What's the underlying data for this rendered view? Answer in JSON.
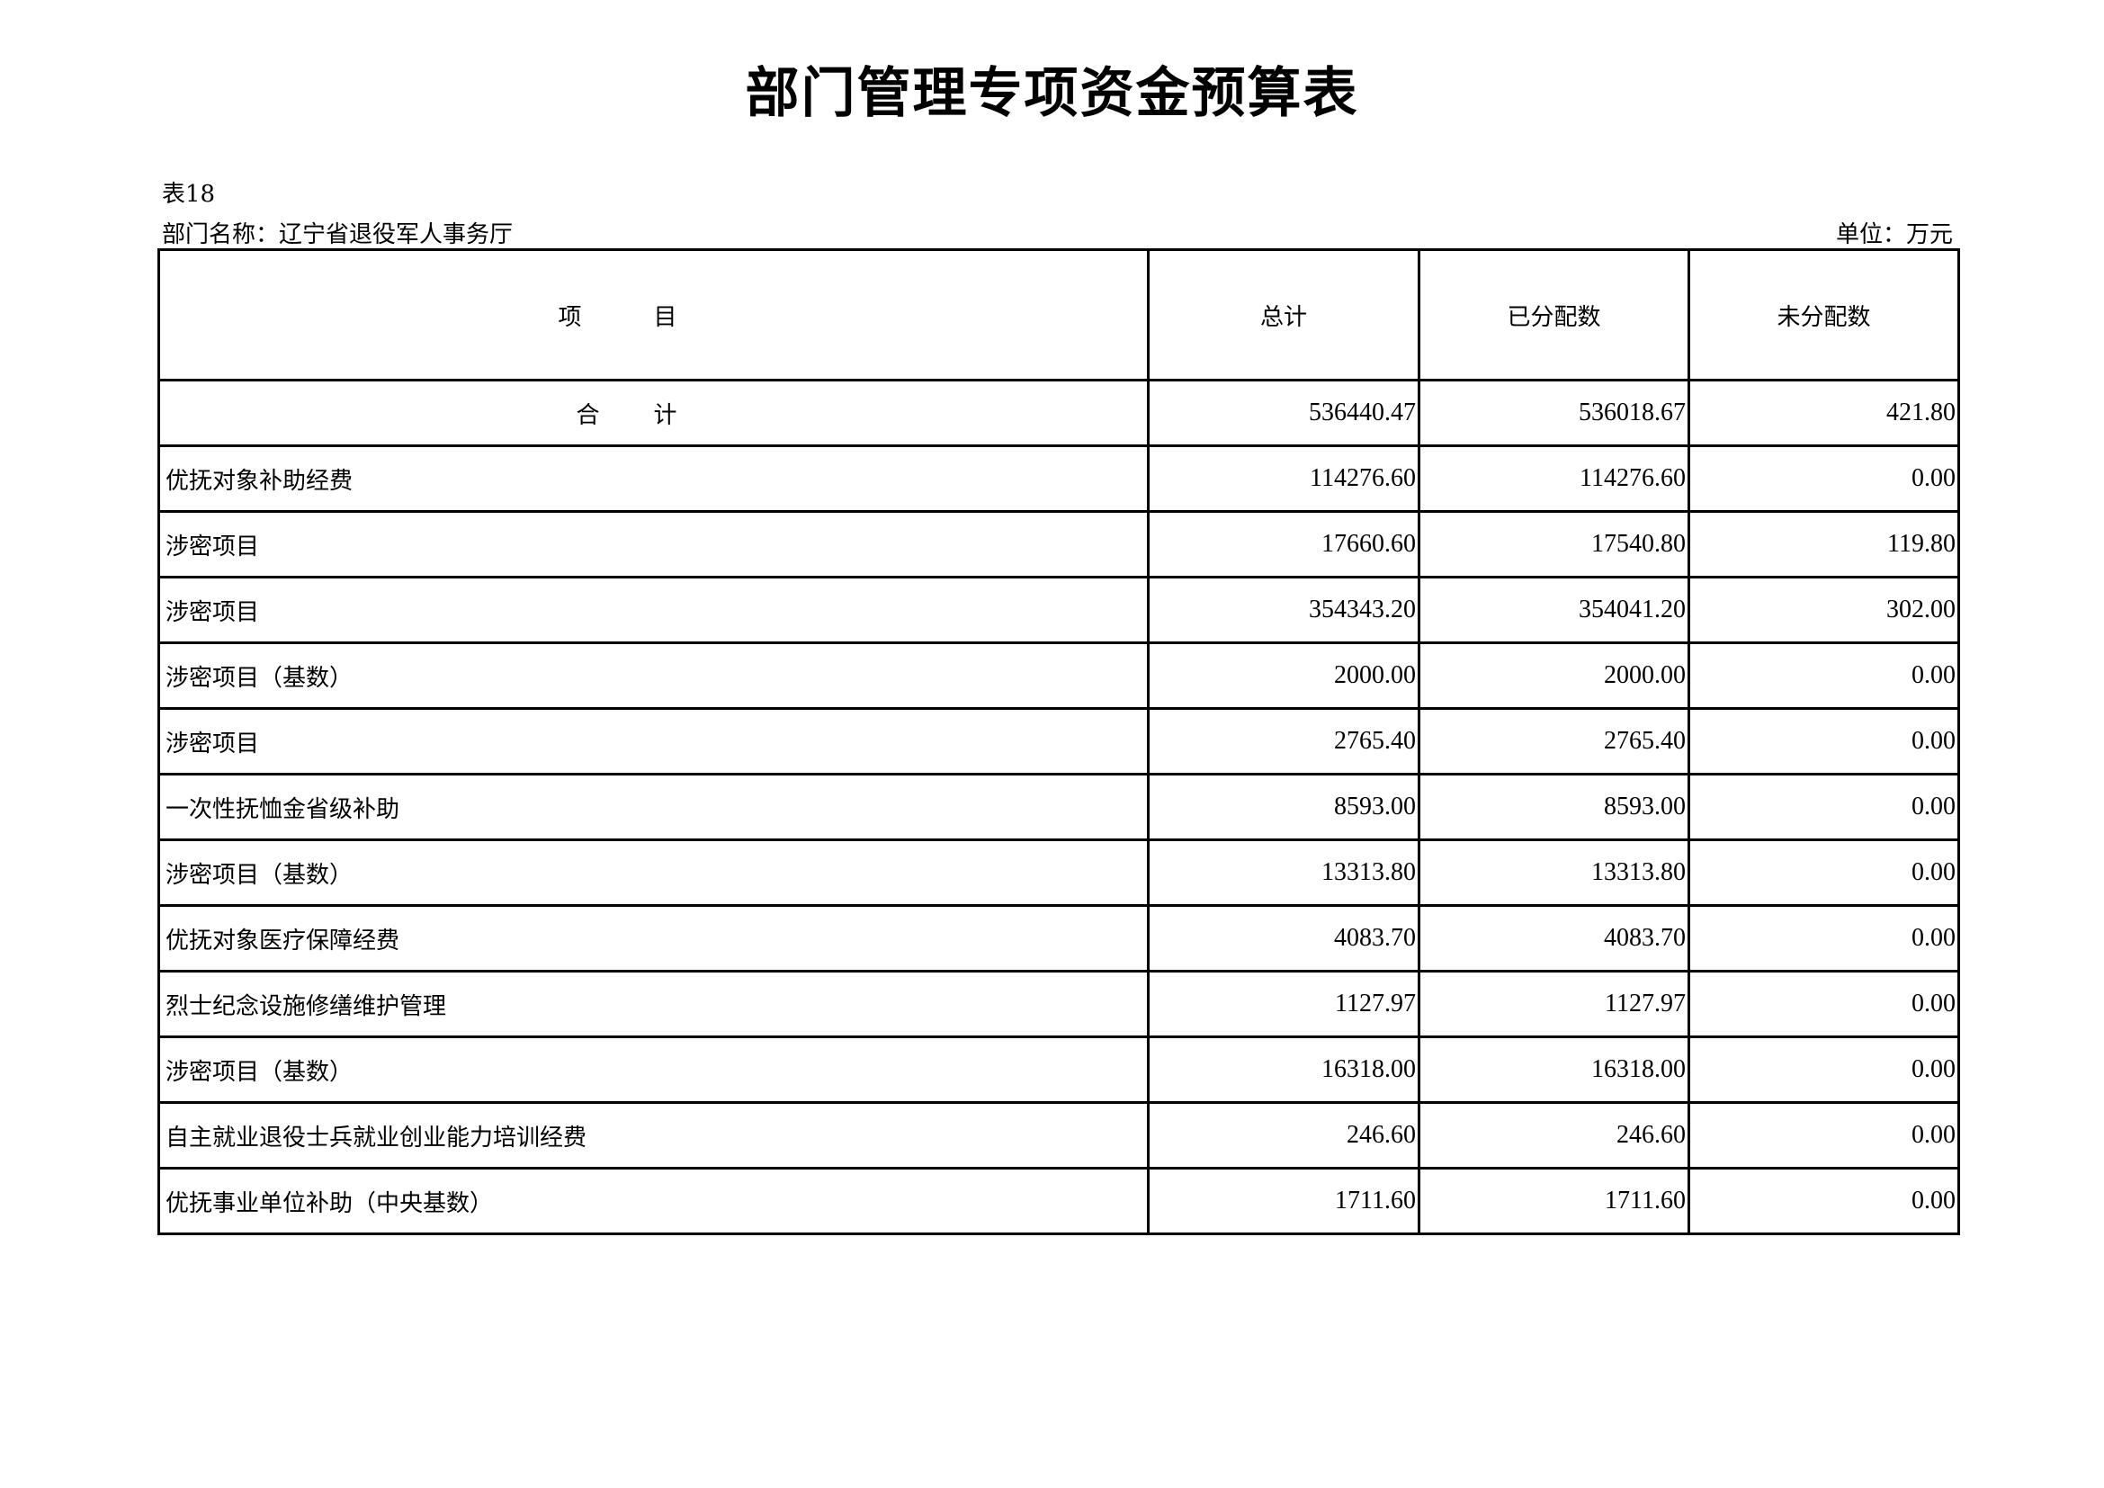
{
  "title": "部门管理专项资金预算表",
  "table_no": "表18",
  "department": "部门名称：辽宁省退役军人事务厅",
  "unit": "单位：万元",
  "headers": [
    "项目",
    "总计",
    "已分配数",
    "未分配数"
  ],
  "total": {
    "label": "合计",
    "total": "536440.47",
    "allocated": "536018.67",
    "unallocated": "421.80"
  },
  "rows": [
    {
      "name": "优抚对象补助经费",
      "total": "114276.60",
      "allocated": "114276.60",
      "unallocated": "0.00"
    },
    {
      "name": "涉密项目",
      "total": "17660.60",
      "allocated": "17540.80",
      "unallocated": "119.80"
    },
    {
      "name": "涉密项目",
      "total": "354343.20",
      "allocated": "354041.20",
      "unallocated": "302.00"
    },
    {
      "name": "涉密项目（基数）",
      "total": "2000.00",
      "allocated": "2000.00",
      "unallocated": "0.00"
    },
    {
      "name": "涉密项目",
      "total": "2765.40",
      "allocated": "2765.40",
      "unallocated": "0.00"
    },
    {
      "name": "一次性抚恤金省级补助",
      "total": "8593.00",
      "allocated": "8593.00",
      "unallocated": "0.00"
    },
    {
      "name": "涉密项目（基数）",
      "total": "13313.80",
      "allocated": "13313.80",
      "unallocated": "0.00"
    },
    {
      "name": "优抚对象医疗保障经费",
      "total": "4083.70",
      "allocated": "4083.70",
      "unallocated": "0.00"
    },
    {
      "name": "烈士纪念设施修缮维护管理",
      "total": "1127.97",
      "allocated": "1127.97",
      "unallocated": "0.00"
    },
    {
      "name": "涉密项目（基数）",
      "total": "16318.00",
      "allocated": "16318.00",
      "unallocated": "0.00"
    },
    {
      "name": "自主就业退役士兵就业创业能力培训经费",
      "total": "246.60",
      "allocated": "246.60",
      "unallocated": "0.00"
    },
    {
      "name": "优抚事业单位补助（中央基数）",
      "total": "1711.60",
      "allocated": "1711.60",
      "unallocated": "0.00"
    }
  ]
}
